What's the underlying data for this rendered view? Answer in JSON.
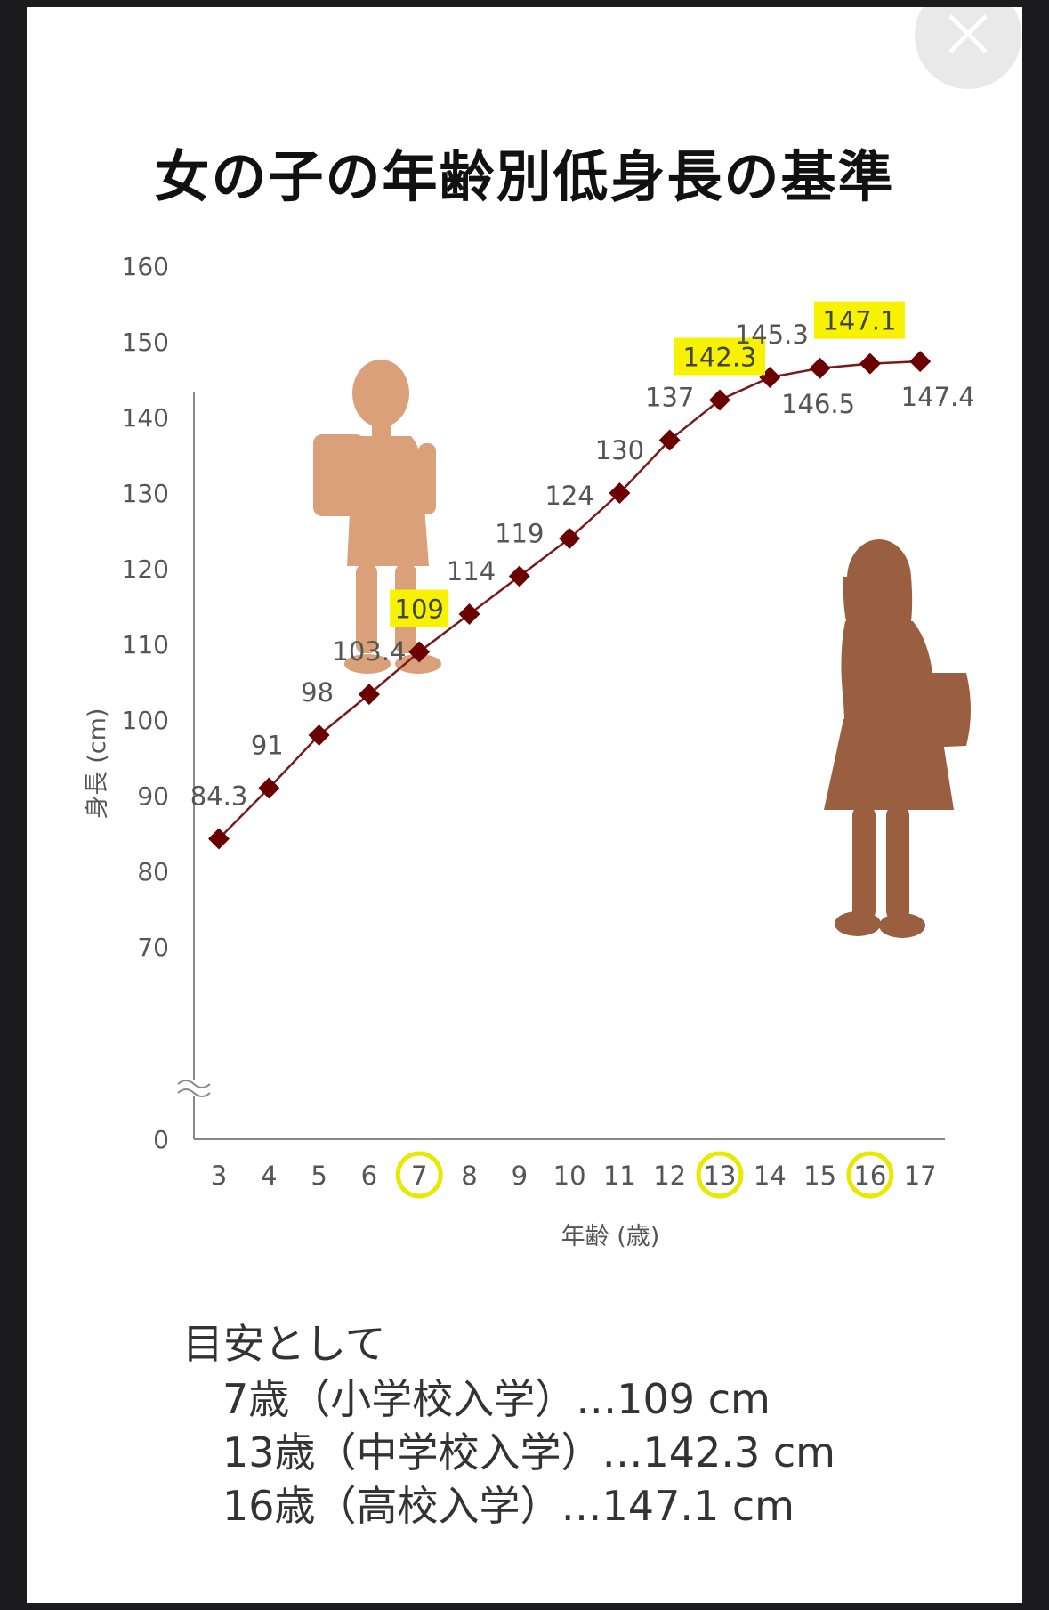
{
  "title": "女の子の年齢別低身長の基準",
  "chart_data": {
    "type": "line",
    "title": "女の子の年齢別低身長の基準",
    "xlabel": "年齢 (歳)",
    "ylabel": "身長 (cm)",
    "x": [
      3,
      4,
      5,
      6,
      7,
      8,
      9,
      10,
      11,
      12,
      13,
      14,
      15,
      16,
      17
    ],
    "values": [
      84.3,
      91,
      98,
      103.4,
      109,
      114,
      119,
      124,
      130,
      137,
      142.3,
      145.3,
      146.5,
      147.1,
      147.4
    ],
    "point_labels": [
      "84.3",
      "91",
      "98",
      "103.4",
      "109",
      "114",
      "119",
      "124",
      "130",
      "137",
      "142.3",
      "145.3",
      "146.5",
      "147.1",
      "147.4"
    ],
    "x_tick_labels": [
      "3",
      "4",
      "5",
      "6",
      "7",
      "8",
      "9",
      "10",
      "11",
      "12",
      "13",
      "14",
      "15",
      "16",
      "17"
    ],
    "y_tick_labels": [
      "0",
      "70",
      "80",
      "90",
      "100",
      "110",
      "120",
      "130",
      "140",
      "150",
      "160"
    ],
    "yticks": [
      70,
      80,
      90,
      100,
      110,
      120,
      130,
      140,
      150,
      160
    ],
    "ylim": [
      70,
      160
    ],
    "y_axis_break": true,
    "grid": false,
    "highlighted_ages": [
      7,
      13,
      16
    ],
    "colors": {
      "line": "#7a1a1a",
      "marker": "#6a0000",
      "label_highlight": "#f6f200",
      "tick_circle": "#e8e800",
      "silhouette_girl": "#d9a07a",
      "silhouette_teen": "#9a5e40"
    }
  },
  "notes": {
    "heading": "目安として",
    "lines": [
      "7歳（小学校入学）…109 cm",
      "13歳（中学校入学）…142.3 cm",
      "16歳（高校入学）…147.1 cm"
    ]
  },
  "icons": {
    "close": "close-icon"
  }
}
